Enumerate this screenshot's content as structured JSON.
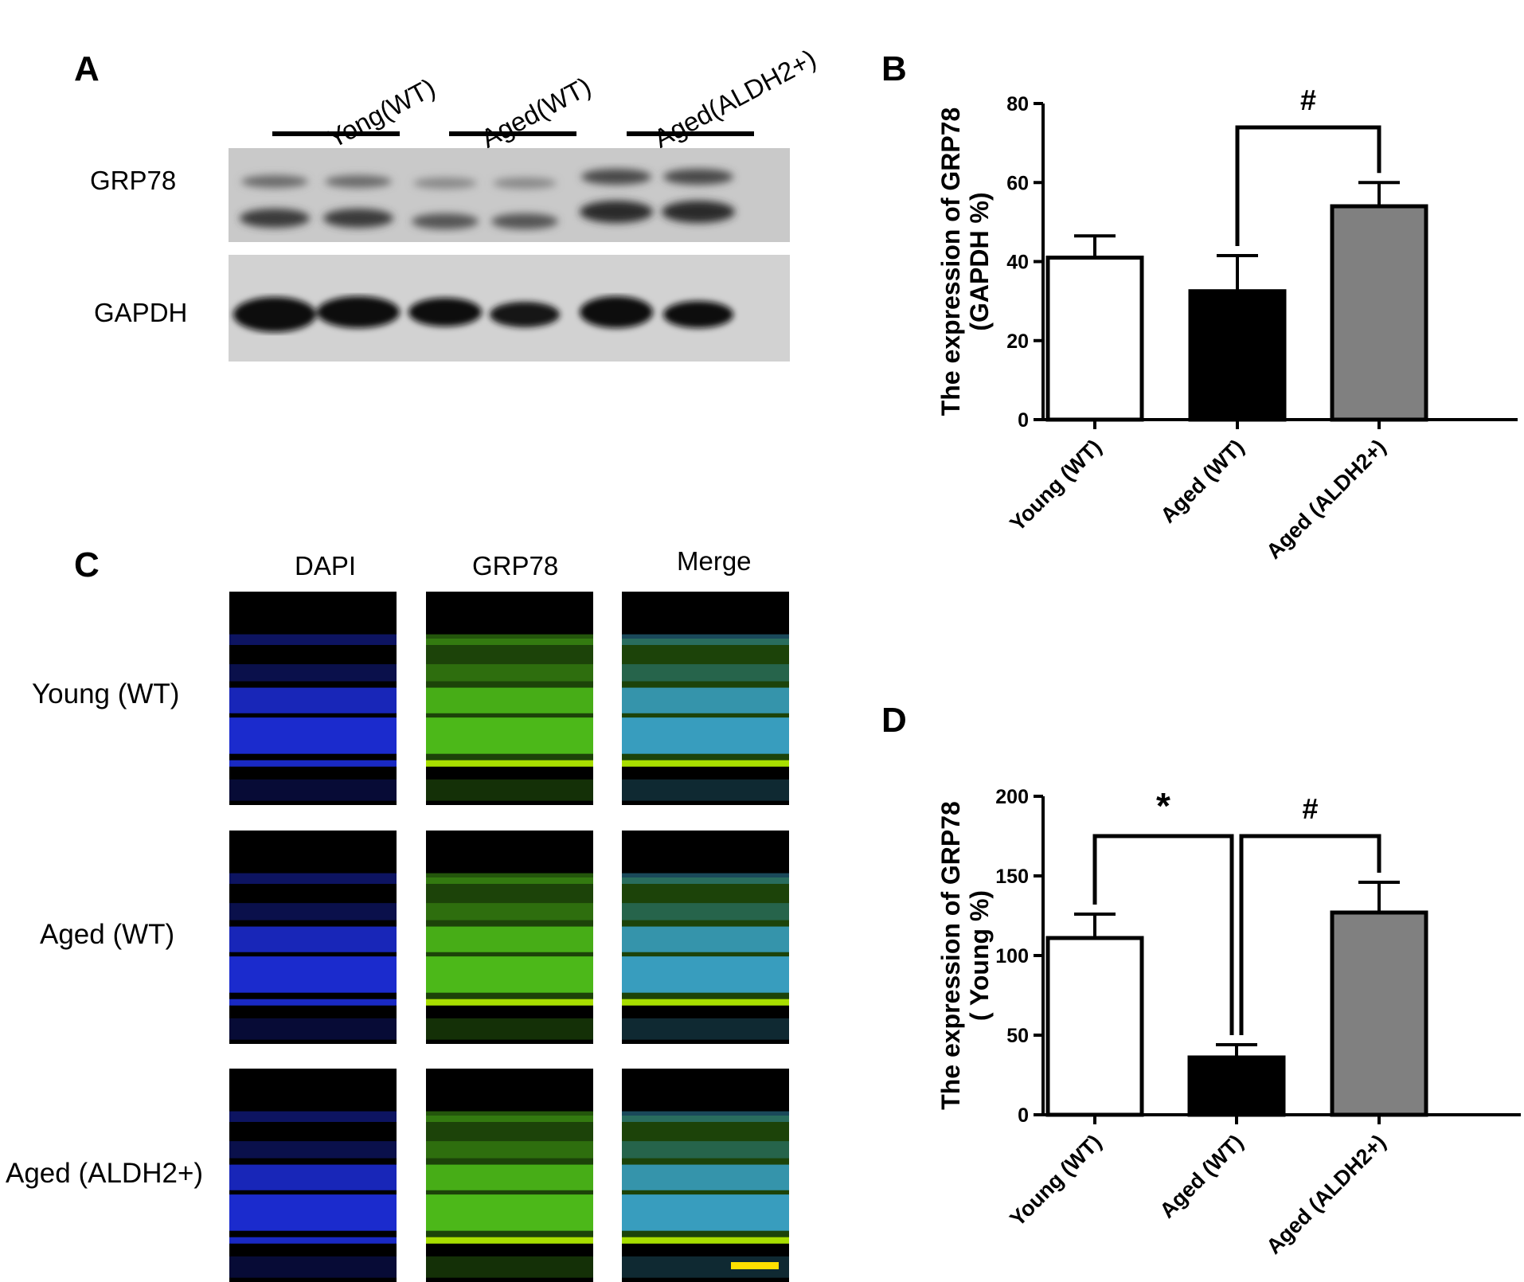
{
  "panel_A": {
    "letter": "A",
    "groups": [
      "Yong(WT)",
      "Aged(WT)",
      "Aged(ALDH2+)"
    ],
    "rows": [
      "GRP78",
      "GAPDH"
    ]
  },
  "panel_B": {
    "letter": "B"
  },
  "panel_C": {
    "letter": "C",
    "columns": [
      "DAPI",
      "GRP78",
      "Merge"
    ],
    "rows": [
      "Young (WT)",
      "Aged (WT)",
      "Aged (ALDH2+)"
    ],
    "colors": {
      "dapi": "#1c2dd8",
      "grp78": "#4fbf1a",
      "merge": "#3aa2c8",
      "scale_bar": "#ffe000"
    }
  },
  "panel_D": {
    "letter": "D"
  },
  "chart_data": [
    {
      "panel": "B",
      "type": "bar",
      "categories": [
        "Young (WT)",
        "Aged (WT)",
        "Aged (ALDH2+)"
      ],
      "values": [
        41,
        32.5,
        54
      ],
      "errors": [
        5.5,
        9,
        6
      ],
      "bar_colors": [
        "#ffffff",
        "#000000",
        "#808080"
      ],
      "ylabel": [
        "The expression of GRP78",
        "(GAPDH %)"
      ],
      "ylim": [
        0,
        80
      ],
      "yticks": [
        0,
        20,
        40,
        60,
        80
      ],
      "annotations": [
        {
          "symbol": "#",
          "between": [
            1,
            2
          ]
        }
      ]
    },
    {
      "panel": "D",
      "type": "bar",
      "categories": [
        "Young (WT)",
        "Aged (WT)",
        "Aged (ALDH2+)"
      ],
      "values": [
        111,
        36,
        127
      ],
      "errors": [
        15,
        8,
        19
      ],
      "bar_colors": [
        "#ffffff",
        "#000000",
        "#808080"
      ],
      "ylabel": [
        "The expression of GRP78",
        "( Young %)"
      ],
      "ylim": [
        0,
        200
      ],
      "yticks": [
        0,
        50,
        100,
        150,
        200
      ],
      "annotations": [
        {
          "symbol": "*",
          "between": [
            0,
            1
          ]
        },
        {
          "symbol": "#",
          "between": [
            1,
            2
          ]
        }
      ]
    }
  ]
}
